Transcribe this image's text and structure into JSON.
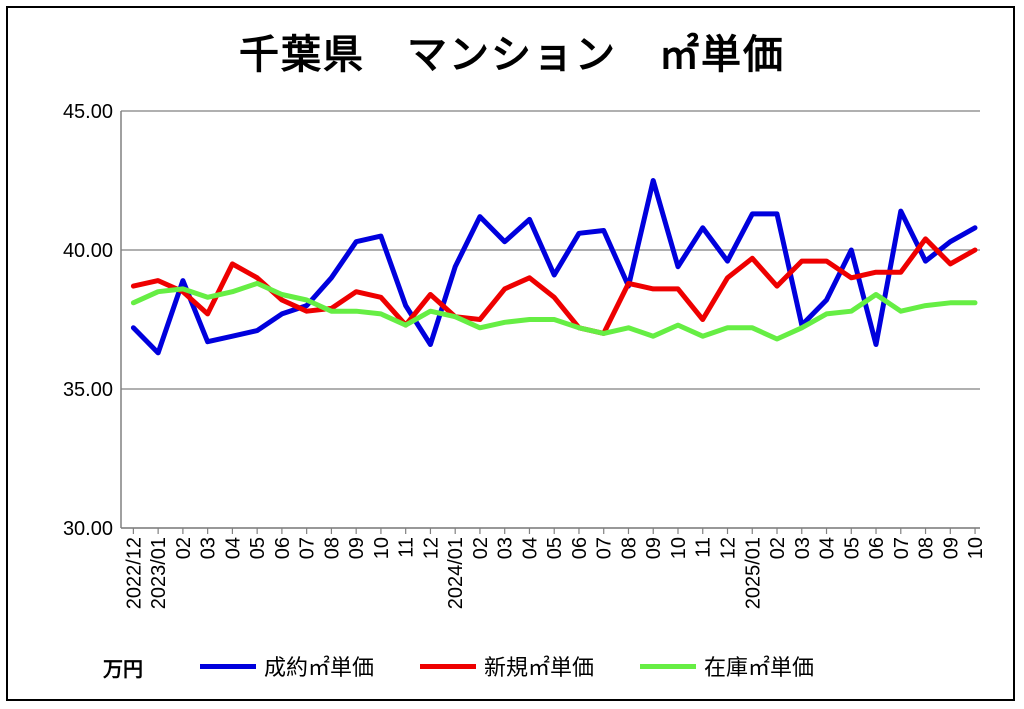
{
  "title": "千葉県　マンション　㎡単価",
  "unit_label": "万円",
  "colors": {
    "series1": "#0000dd",
    "series2": "#ee0000",
    "series3": "#66ee44",
    "grid": "#808080"
  },
  "chart_data": {
    "type": "line",
    "title": "千葉県　マンション　㎡単価",
    "ylabel": "万円",
    "ylim": [
      30,
      45
    ],
    "yticks": [
      "30.00",
      "35.00",
      "40.00",
      "45.00"
    ],
    "grid": "horizontal",
    "legend": "bottom",
    "categories": [
      "2022/12",
      "2023/01",
      "02",
      "03",
      "04",
      "05",
      "06",
      "07",
      "08",
      "09",
      "10",
      "11",
      "12",
      "2024/01",
      "02",
      "03",
      "04",
      "05",
      "06",
      "07",
      "08",
      "09",
      "10",
      "11",
      "12",
      "2025/01",
      "02",
      "03",
      "04",
      "05",
      "06",
      "07",
      "08",
      "09",
      "10"
    ],
    "series": [
      {
        "name": "成約㎡単価",
        "color": "#0000dd",
        "values": [
          37.2,
          36.3,
          38.9,
          36.7,
          36.9,
          37.1,
          37.7,
          38.0,
          39.0,
          40.3,
          40.5,
          38.0,
          36.6,
          39.4,
          41.2,
          40.3,
          41.1,
          39.1,
          40.6,
          40.7,
          38.7,
          42.5,
          39.4,
          40.8,
          39.6,
          41.3,
          41.3,
          37.3,
          38.2,
          40.0,
          36.6,
          41.4,
          39.6,
          40.3,
          40.8
        ]
      },
      {
        "name": "新規㎡単価",
        "color": "#ee0000",
        "values": [
          38.7,
          38.9,
          38.5,
          37.7,
          39.5,
          39.0,
          38.2,
          37.8,
          37.9,
          38.5,
          38.3,
          37.3,
          38.4,
          37.6,
          37.5,
          38.6,
          39.0,
          38.3,
          37.2,
          37.0,
          38.8,
          38.6,
          38.6,
          37.5,
          39.0,
          39.7,
          38.7,
          39.6,
          39.6,
          39.0,
          39.2,
          39.2,
          40.4,
          39.5,
          40.0
        ]
      },
      {
        "name": "在庫㎡単価",
        "color": "#66ee44",
        "values": [
          38.1,
          38.5,
          38.6,
          38.3,
          38.5,
          38.8,
          38.4,
          38.2,
          37.8,
          37.8,
          37.7,
          37.3,
          37.8,
          37.6,
          37.2,
          37.4,
          37.5,
          37.5,
          37.2,
          37.0,
          37.2,
          36.9,
          37.3,
          36.9,
          37.2,
          37.2,
          36.8,
          37.2,
          37.7,
          37.8,
          38.4,
          37.8,
          38.0,
          38.1,
          38.1
        ]
      }
    ]
  }
}
